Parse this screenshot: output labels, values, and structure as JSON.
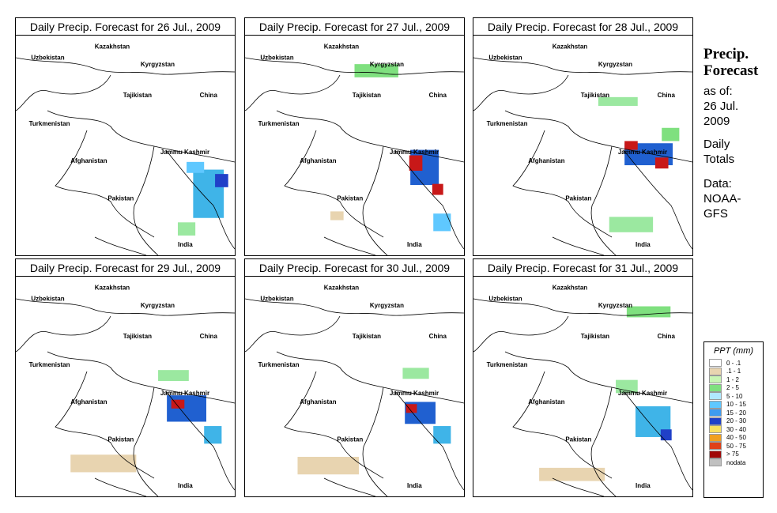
{
  "panels": [
    {
      "title": "Daily Precip. Forecast for  26 Jul., 2009",
      "blobs": [
        [
          0.88,
          0.72,
          0.14,
          0.22,
          "#3fb4e8"
        ],
        [
          0.94,
          0.66,
          0.06,
          0.06,
          "#2040c8"
        ],
        [
          0.78,
          0.88,
          0.08,
          0.06,
          "#9be8a0"
        ],
        [
          0.82,
          0.6,
          0.08,
          0.05,
          "#5fc8ff"
        ]
      ]
    },
    {
      "title": "Daily Precip. Forecast for  27 Jul., 2009",
      "blobs": [
        [
          0.82,
          0.6,
          0.13,
          0.16,
          "#2060d0"
        ],
        [
          0.78,
          0.58,
          0.06,
          0.07,
          "#c81818"
        ],
        [
          0.88,
          0.7,
          0.05,
          0.05,
          "#c81818"
        ],
        [
          0.9,
          0.85,
          0.08,
          0.08,
          "#5fc8ff"
        ],
        [
          0.6,
          0.16,
          0.2,
          0.06,
          "#7fe07f"
        ],
        [
          0.42,
          0.82,
          0.06,
          0.04,
          "#e8d4b0"
        ]
      ]
    },
    {
      "title": "Daily Precip. Forecast for  28 Jul., 2009",
      "blobs": [
        [
          0.8,
          0.54,
          0.22,
          0.1,
          "#2060d0"
        ],
        [
          0.72,
          0.5,
          0.06,
          0.04,
          "#c81818"
        ],
        [
          0.86,
          0.58,
          0.06,
          0.05,
          "#c81818"
        ],
        [
          0.66,
          0.3,
          0.18,
          0.04,
          "#9be8a0"
        ],
        [
          0.72,
          0.86,
          0.2,
          0.07,
          "#9be8a0"
        ],
        [
          0.9,
          0.45,
          0.08,
          0.06,
          "#7fe07f"
        ]
      ]
    },
    {
      "title": "Daily Precip. Forecast for  29 Jul., 2009",
      "blobs": [
        [
          0.78,
          0.6,
          0.18,
          0.12,
          "#2060d0"
        ],
        [
          0.74,
          0.58,
          0.06,
          0.04,
          "#c81818"
        ],
        [
          0.9,
          0.72,
          0.08,
          0.08,
          "#3fb4e8"
        ],
        [
          0.72,
          0.45,
          0.14,
          0.05,
          "#9be8a0"
        ],
        [
          0.4,
          0.85,
          0.3,
          0.08,
          "#e8d4b0"
        ]
      ]
    },
    {
      "title": "Daily Precip. Forecast for  30 Jul., 2009",
      "blobs": [
        [
          0.8,
          0.62,
          0.14,
          0.1,
          "#2060d0"
        ],
        [
          0.76,
          0.6,
          0.05,
          0.04,
          "#c81818"
        ],
        [
          0.9,
          0.72,
          0.08,
          0.08,
          "#3fb4e8"
        ],
        [
          0.78,
          0.44,
          0.12,
          0.05,
          "#9be8a0"
        ],
        [
          0.38,
          0.86,
          0.28,
          0.08,
          "#e8d4b0"
        ]
      ]
    },
    {
      "title": "Daily Precip. Forecast for  31 Jul., 2009",
      "blobs": [
        [
          0.82,
          0.66,
          0.16,
          0.14,
          "#3fb4e8"
        ],
        [
          0.88,
          0.72,
          0.05,
          0.05,
          "#2040c8"
        ],
        [
          0.8,
          0.16,
          0.2,
          0.05,
          "#7fe07f"
        ],
        [
          0.7,
          0.5,
          0.1,
          0.06,
          "#9be8a0"
        ],
        [
          0.45,
          0.9,
          0.3,
          0.06,
          "#e8d4b0"
        ]
      ]
    }
  ],
  "map_labels": {
    "kazakhstan": "Kazakhstan",
    "uzbekistan": "Uzbekistan",
    "kyrgyzstan": "Kyrgyzstan",
    "tajikistan": "Tajikistan",
    "turkmenistan": "Turkmenistan",
    "china": "China",
    "afghanistan": "Afghanistan",
    "jammu_kashmir": "Jammu Kashmir",
    "pakistan": "Pakistan",
    "india": "India"
  },
  "side": {
    "title_line1": "Precip.",
    "title_line2": "Forecast",
    "as_of": "as of:",
    "date_line1": "26 Jul.",
    "date_line2": "2009",
    "totals_line1": "Daily",
    "totals_line2": "Totals",
    "data_line1": "Data:",
    "data_line2": "NOAA-",
    "data_line3": "GFS"
  },
  "legend": {
    "title": "PPT (mm)",
    "entries": [
      {
        "label": "0 - .1",
        "color": "#ffffff"
      },
      {
        "label": ".1 - 1",
        "color": "#e8d4b0"
      },
      {
        "label": "1 - 2",
        "color": "#c8f5b4"
      },
      {
        "label": "2 - 5",
        "color": "#7fe07f"
      },
      {
        "label": "5 - 10",
        "color": "#b0e8ff"
      },
      {
        "label": "10 - 15",
        "color": "#5fc8ff"
      },
      {
        "label": "15 - 20",
        "color": "#3f9cf0"
      },
      {
        "label": "20 - 30",
        "color": "#2040c8"
      },
      {
        "label": "30 - 40",
        "color": "#f8e060"
      },
      {
        "label": "40 - 50",
        "color": "#f0a020"
      },
      {
        "label": "50 - 75",
        "color": "#e04018"
      },
      {
        "label": "> 75",
        "color": "#a00808"
      },
      {
        "label": "nodata",
        "color": "#c0c0c0"
      }
    ]
  }
}
